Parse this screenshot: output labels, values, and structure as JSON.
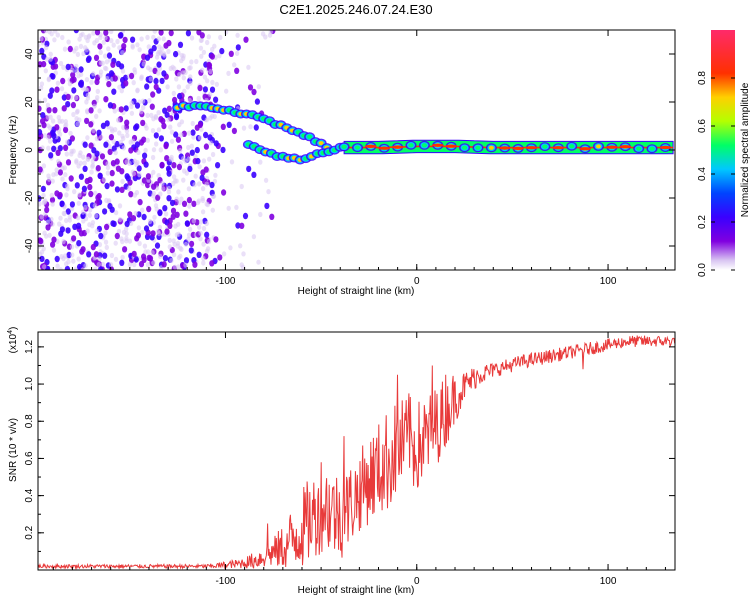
{
  "title": "C2E1.2025.246.07.24.E30",
  "colors": {
    "snr_line": "#e83a3a",
    "frame": "#000000",
    "colormap": [
      "#ffffff",
      "#d9c6f2",
      "#8000e0",
      "#3a00ff",
      "#0000ff",
      "#00c8ff",
      "#00ff66",
      "#b4ff00",
      "#ffd000",
      "#ff3000",
      "#ff2a6a"
    ]
  },
  "chart_data": [
    {
      "type": "heatmap",
      "name": "spectrogram",
      "xlabel": "Height of straight line (km)",
      "ylabel": "Frequency (Hz)",
      "xlim": [
        -198,
        135
      ],
      "ylim": [
        -50,
        50
      ],
      "xticks": [
        -100,
        0,
        100
      ],
      "xtick_labels": [
        "-100",
        "0",
        "100"
      ],
      "yticks": [
        -40,
        -20,
        0,
        20,
        40
      ],
      "ytick_labels": [
        "-40",
        "-20",
        "0",
        "20",
        "40"
      ],
      "noise_region_x": [
        -198,
        -75
      ],
      "traces": [
        {
          "name": "upper-branch",
          "points": [
            [
              -125,
              18
            ],
            [
              -110,
              18
            ],
            [
              -100,
              17
            ],
            [
              -90,
              15
            ],
            [
              -80,
              13
            ],
            [
              -70,
              10
            ],
            [
              -60,
              7
            ],
            [
              -52,
              3
            ],
            [
              -45,
              1
            ]
          ]
        },
        {
          "name": "lower-branch",
          "points": [
            [
              -88,
              2
            ],
            [
              -80,
              0
            ],
            [
              -70,
              -3
            ],
            [
              -60,
              -4
            ],
            [
              -52,
              -2
            ],
            [
              -45,
              0
            ],
            [
              -38,
              1
            ]
          ]
        },
        {
          "name": "carrier",
          "points": [
            [
              -38,
              1
            ],
            [
              -20,
              1
            ],
            [
              0,
              1.5
            ],
            [
              20,
              1.5
            ],
            [
              40,
              1
            ],
            [
              70,
              1
            ],
            [
              100,
              1
            ],
            [
              135,
              1
            ]
          ]
        }
      ],
      "colorbar": {
        "label": "Normalized spectral amplitude",
        "range": [
          0,
          1
        ],
        "ticks": [
          0.0,
          0.2,
          0.4,
          0.6,
          0.8
        ],
        "tick_labels": [
          "0.0",
          "0.2",
          "0.4",
          "0.6",
          "0.8"
        ]
      }
    },
    {
      "type": "line",
      "name": "snr",
      "xlabel": "Height of straight line (km)",
      "ylabel": "SNR (10 * v/v)",
      "scale_label": "(x10",
      "scale_exp": "4",
      "xlim": [
        -198,
        135
      ],
      "ylim": [
        0,
        1.28
      ],
      "xticks": [
        -100,
        0,
        100
      ],
      "xtick_labels": [
        "-100",
        "0",
        "100"
      ],
      "yticks": [
        0.2,
        0.4,
        0.6,
        0.8,
        1.0,
        1.2
      ],
      "ytick_labels": [
        "0.2",
        "0.4",
        "0.6",
        "0.8",
        "1.0",
        "1.2"
      ],
      "envelope": [
        [
          -198,
          0.02
        ],
        [
          -110,
          0.02
        ],
        [
          -95,
          0.03
        ],
        [
          -85,
          0.05
        ],
        [
          -78,
          0.08
        ],
        [
          -70,
          0.12
        ],
        [
          -62,
          0.2
        ],
        [
          -55,
          0.28
        ],
        [
          -48,
          0.35
        ],
        [
          -42,
          0.3
        ],
        [
          -38,
          0.3
        ],
        [
          -33,
          0.38
        ],
        [
          -28,
          0.45
        ],
        [
          -22,
          0.52
        ],
        [
          -16,
          0.58
        ],
        [
          -10,
          0.65
        ],
        [
          -4,
          0.68
        ],
        [
          0,
          0.66
        ],
        [
          6,
          0.72
        ],
        [
          12,
          0.8
        ],
        [
          18,
          0.9
        ],
        [
          25,
          0.99
        ],
        [
          32,
          1.05
        ],
        [
          42,
          1.08
        ],
        [
          55,
          1.12
        ],
        [
          70,
          1.15
        ],
        [
          85,
          1.18
        ],
        [
          95,
          1.2
        ],
        [
          110,
          1.23
        ],
        [
          135,
          1.23
        ]
      ],
      "noise_amp": [
        [
          -198,
          0.01
        ],
        [
          -110,
          0.01
        ],
        [
          -90,
          0.03
        ],
        [
          -75,
          0.08
        ],
        [
          -60,
          0.22
        ],
        [
          -45,
          0.25
        ],
        [
          -30,
          0.22
        ],
        [
          -15,
          0.28
        ],
        [
          0,
          0.25
        ],
        [
          15,
          0.2
        ],
        [
          25,
          0.08
        ],
        [
          40,
          0.04
        ],
        [
          135,
          0.03
        ]
      ],
      "spikes": [
        [
          -78,
          0.25
        ],
        [
          -50,
          0.58
        ],
        [
          -38,
          0.72
        ],
        [
          -10,
          1.05
        ],
        [
          -4,
          0.95
        ],
        [
          8,
          1.1
        ],
        [
          15,
          1.05
        ],
        [
          87,
          1.08
        ]
      ]
    }
  ]
}
